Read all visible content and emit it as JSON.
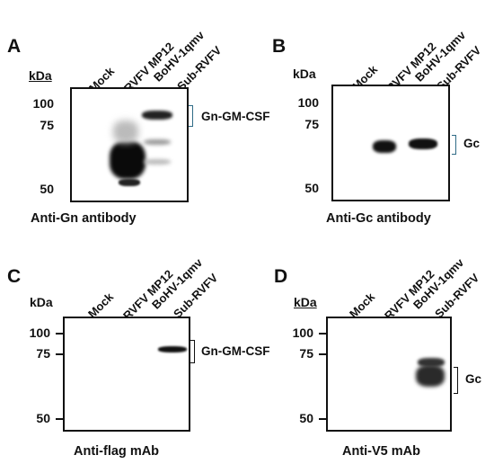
{
  "lanes": [
    "Mock",
    "RVFV MP12",
    "BoHV-1qmv",
    "Sub-RVFV"
  ],
  "kda_label": "kDa",
  "panels": [
    {
      "letter": "A",
      "mw": [
        "100",
        "75",
        "50"
      ],
      "annotation": "Gn-GM-CSF",
      "caption": "Anti-Gn antibody"
    },
    {
      "letter": "B",
      "mw": [
        "100",
        "75",
        "50"
      ],
      "annotation": "Gc",
      "caption": "Anti-Gc antibody"
    },
    {
      "letter": "C",
      "mw": [
        "100",
        "75",
        "50"
      ],
      "annotation": "Gn-GM-CSF",
      "caption": "Anti-flag mAb"
    },
    {
      "letter": "D",
      "mw": [
        "100",
        "75",
        "50"
      ],
      "annotation": "Gc",
      "caption": "Anti-V5 mAb"
    }
  ],
  "colors": {
    "bracket_teal": "#2f6b86",
    "band_dark": "#111111"
  }
}
